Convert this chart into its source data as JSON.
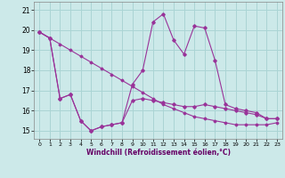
{
  "xlabel": "Windchill (Refroidissement éolien,°C)",
  "background_color": "#cce9e9",
  "line_color": "#993399",
  "grid_color": "#aad4d4",
  "ylim": [
    14.6,
    21.4
  ],
  "xlim": [
    -0.5,
    23.5
  ],
  "yticks": [
    15,
    16,
    17,
    18,
    19,
    20,
    21
  ],
  "xticks": [
    0,
    1,
    2,
    3,
    4,
    5,
    6,
    7,
    8,
    9,
    10,
    11,
    12,
    13,
    14,
    15,
    16,
    17,
    18,
    19,
    20,
    21,
    22,
    23
  ],
  "line1_x": [
    0,
    1,
    2,
    3,
    4,
    5,
    6,
    7,
    8,
    9,
    10,
    11,
    12,
    13,
    14,
    15,
    16,
    17,
    18,
    19,
    20,
    21,
    22,
    23
  ],
  "line1_y": [
    19.9,
    19.6,
    19.3,
    19.0,
    18.7,
    18.4,
    18.1,
    17.8,
    17.5,
    17.2,
    16.9,
    16.6,
    16.3,
    16.1,
    15.9,
    15.7,
    15.6,
    15.5,
    15.4,
    15.3,
    15.3,
    15.3,
    15.3,
    15.4
  ],
  "line2_x": [
    0,
    1,
    2,
    3,
    4,
    5,
    6,
    7,
    8,
    9,
    10,
    11,
    12,
    13,
    14,
    15,
    16,
    17,
    18,
    19,
    20,
    21,
    22,
    23
  ],
  "line2_y": [
    19.9,
    19.6,
    16.6,
    16.8,
    15.5,
    15.0,
    15.2,
    15.3,
    15.4,
    17.3,
    18.0,
    20.4,
    20.8,
    19.5,
    18.8,
    20.2,
    20.1,
    18.5,
    16.3,
    16.1,
    16.0,
    15.9,
    15.6,
    15.6
  ],
  "line3_x": [
    0,
    1,
    2,
    3,
    4,
    5,
    6,
    7,
    8,
    9,
    10,
    11,
    12,
    13,
    14,
    15,
    16,
    17,
    18,
    19,
    20,
    21,
    22,
    23
  ],
  "line3_y": [
    19.9,
    19.6,
    16.6,
    16.8,
    15.5,
    15.0,
    15.2,
    15.3,
    15.4,
    16.5,
    16.6,
    16.5,
    16.4,
    16.3,
    16.2,
    16.2,
    16.3,
    16.2,
    16.1,
    16.0,
    15.9,
    15.8,
    15.6,
    15.6
  ]
}
